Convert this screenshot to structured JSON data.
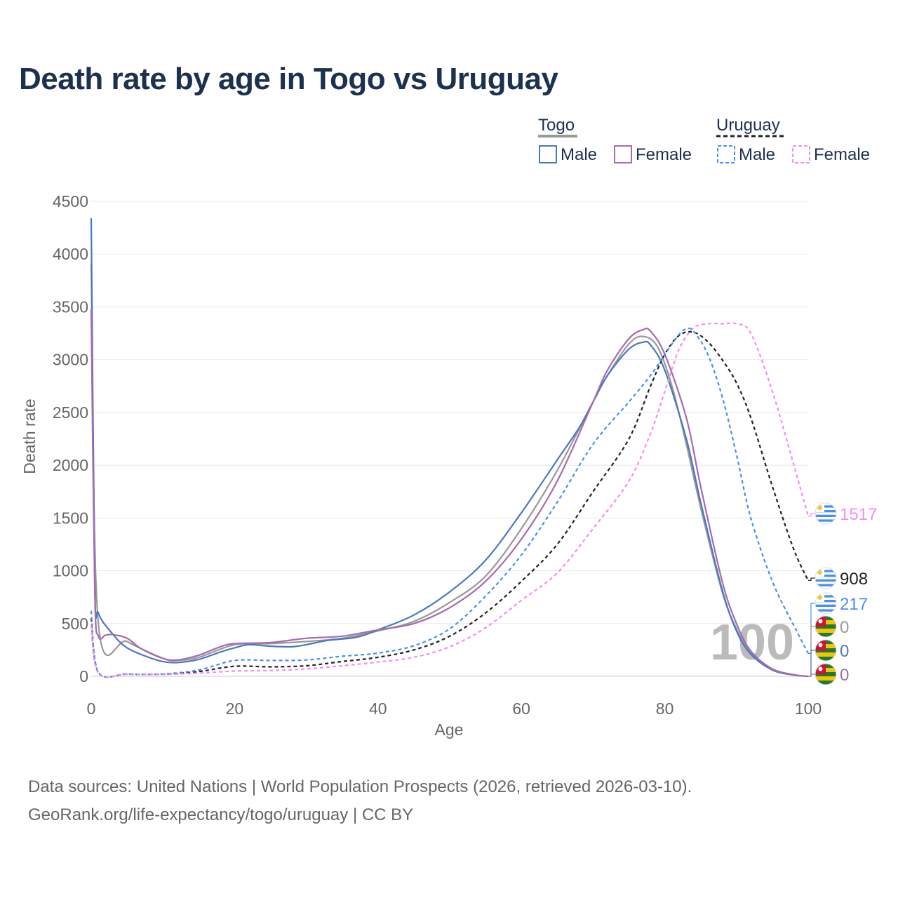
{
  "title": "Death rate by age in Togo vs Uruguay",
  "footer": {
    "sources": "Data sources: United Nations | World Population Prospects (2026, retrieved 2026-03-10).",
    "url": "GeoRank.org/life-expectancy/togo/uruguay | CC BY"
  },
  "legend": {
    "groups": [
      {
        "name": "Togo",
        "items": [
          "Male",
          "Female"
        ]
      },
      {
        "name": "Uruguay",
        "items": [
          "Male",
          "Female"
        ]
      }
    ]
  },
  "chart_data": {
    "type": "line",
    "title": "Death rate by age in Togo vs Uruguay",
    "xlabel": "Age",
    "ylabel": "Death rate",
    "xlim": [
      0,
      100
    ],
    "ylim": [
      0,
      4500
    ],
    "xticks": [
      0,
      20,
      40,
      60,
      80,
      100
    ],
    "yticks": [
      0,
      500,
      1000,
      1500,
      2000,
      2500,
      3000,
      3500,
      4000,
      4500
    ],
    "watermark": "100",
    "series": [
      {
        "name": "Togo Total",
        "color": "#999999",
        "dash": false,
        "x": [
          0,
          1,
          5,
          10,
          12,
          15,
          20,
          25,
          30,
          35,
          40,
          45,
          50,
          55,
          60,
          65,
          70,
          72,
          75,
          77,
          79,
          81,
          83,
          85,
          88,
          90,
          92,
          95,
          98,
          100
        ],
        "y": [
          3900,
          500,
          330,
          170,
          150,
          180,
          300,
          310,
          330,
          360,
          430,
          520,
          700,
          950,
          1400,
          1950,
          2600,
          2850,
          3150,
          3220,
          3120,
          2750,
          2200,
          1600,
          800,
          450,
          220,
          70,
          15,
          0
        ]
      },
      {
        "name": "Togo Male",
        "color": "#4a78c0",
        "dash": false,
        "x": [
          0,
          0.5,
          1,
          3,
          5,
          8,
          10,
          12,
          15,
          18,
          20,
          22,
          25,
          28,
          30,
          33,
          37,
          40,
          45,
          50,
          55,
          60,
          65,
          68,
          70,
          72,
          75,
          77,
          78,
          80,
          83,
          85,
          88,
          90,
          92,
          95,
          98,
          100
        ],
        "y": [
          4340,
          900,
          600,
          400,
          270,
          180,
          140,
          130,
          160,
          230,
          270,
          300,
          285,
          280,
          300,
          340,
          370,
          440,
          580,
          800,
          1100,
          1550,
          2050,
          2350,
          2600,
          2850,
          3100,
          3165,
          3140,
          2900,
          2250,
          1650,
          820,
          430,
          210,
          60,
          12,
          0
        ]
      },
      {
        "name": "Togo Female",
        "color": "#a66bb0",
        "dash": false,
        "x": [
          0,
          0.5,
          1,
          2,
          3,
          5,
          7,
          10,
          12,
          15,
          18,
          20,
          25,
          30,
          35,
          40,
          45,
          50,
          55,
          60,
          65,
          70,
          72,
          75,
          77,
          78,
          80,
          83,
          85,
          88,
          90,
          92,
          95,
          98,
          100
        ],
        "y": [
          3480,
          800,
          380,
          390,
          395,
          360,
          260,
          170,
          155,
          200,
          280,
          310,
          320,
          360,
          380,
          440,
          500,
          650,
          900,
          1300,
          1850,
          2600,
          2900,
          3200,
          3285,
          3270,
          3050,
          2450,
          1800,
          900,
          500,
          240,
          70,
          15,
          0
        ]
      },
      {
        "name": "Uruguay Total",
        "color": "#222222",
        "dash": true,
        "x": [
          0,
          1,
          5,
          10,
          15,
          20,
          25,
          30,
          35,
          40,
          45,
          50,
          55,
          60,
          65,
          70,
          75,
          78,
          80,
          82,
          84,
          86,
          88,
          90,
          92,
          95,
          98,
          100
        ],
        "y": [
          550,
          35,
          20,
          20,
          45,
          95,
          90,
          100,
          140,
          180,
          250,
          380,
          600,
          900,
          1250,
          1750,
          2250,
          2750,
          3050,
          3230,
          3260,
          3170,
          3000,
          2780,
          2450,
          1800,
          1200,
          908
        ]
      },
      {
        "name": "Uruguay Male",
        "color": "#4a8ff0",
        "dash": true,
        "x": [
          0,
          1,
          5,
          10,
          15,
          20,
          25,
          30,
          35,
          40,
          45,
          50,
          55,
          60,
          65,
          70,
          75,
          78,
          80,
          82,
          83,
          84,
          86,
          88,
          90,
          92,
          95,
          98,
          100
        ],
        "y": [
          620,
          40,
          22,
          22,
          60,
          150,
          150,
          155,
          190,
          220,
          290,
          450,
          760,
          1150,
          1650,
          2200,
          2600,
          2850,
          3050,
          3240,
          3290,
          3270,
          3050,
          2650,
          2100,
          1500,
          900,
          480,
          217
        ]
      },
      {
        "name": "Uruguay Female",
        "color": "#f58cf0",
        "dash": true,
        "x": [
          0,
          1,
          5,
          10,
          15,
          20,
          25,
          30,
          35,
          40,
          45,
          50,
          55,
          60,
          65,
          70,
          75,
          78,
          80,
          82,
          84,
          86,
          88,
          90,
          92,
          95,
          98,
          100
        ],
        "y": [
          480,
          30,
          18,
          18,
          30,
          50,
          55,
          70,
          100,
          135,
          180,
          280,
          460,
          720,
          980,
          1400,
          1850,
          2300,
          2700,
          3100,
          3300,
          3340,
          3340,
          3340,
          3250,
          2700,
          2000,
          1517
        ]
      }
    ],
    "end_labels": [
      {
        "value": "1517",
        "color": "#f58cf0",
        "country": "Uruguay"
      },
      {
        "value": "908",
        "color": "#222222",
        "country": "Uruguay"
      },
      {
        "value": "217",
        "color": "#4a8ff0",
        "country": "Uruguay"
      },
      {
        "value": "0",
        "color": "#999999",
        "country": "Togo"
      },
      {
        "value": "0",
        "color": "#4a78c0",
        "country": "Togo"
      },
      {
        "value": "0",
        "color": "#a66bb0",
        "country": "Togo"
      }
    ]
  }
}
